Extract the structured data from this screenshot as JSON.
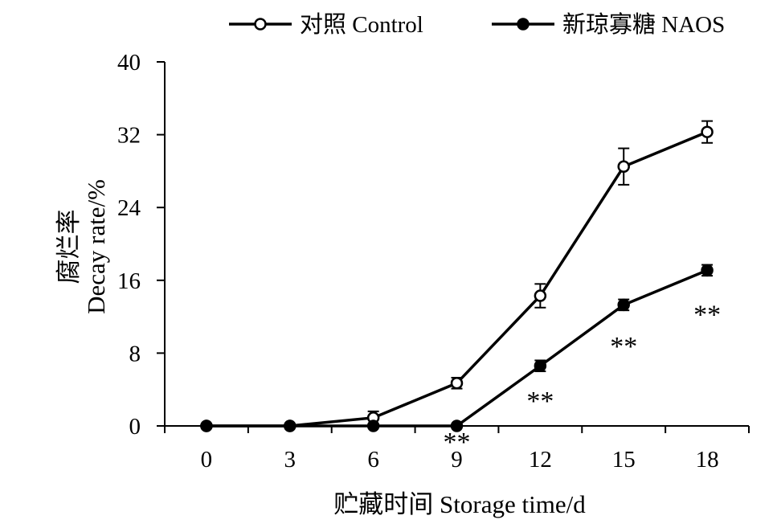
{
  "chart_data": {
    "type": "line",
    "xlabel": "贮藏时间 Storage time/d",
    "ylabel_cn": "腐烂率",
    "ylabel_en": "Decay rate/%",
    "x": [
      0,
      3,
      6,
      9,
      12,
      15,
      18
    ],
    "xticks": [
      "0",
      "3",
      "6",
      "9",
      "12",
      "15",
      "18"
    ],
    "xlim": [
      -1.5,
      19.5
    ],
    "ylim": [
      0,
      40
    ],
    "yticks": [
      "0",
      "8",
      "16",
      "24",
      "32",
      "40"
    ],
    "grid": false,
    "legend_position": "top",
    "series": [
      {
        "name": "对照 Control",
        "marker": "open-circle",
        "color": "#000000",
        "values": [
          0,
          0,
          0.9,
          4.7,
          14.3,
          28.5,
          32.3
        ],
        "errors": [
          0,
          0,
          0.7,
          0.6,
          1.3,
          2.0,
          1.2
        ]
      },
      {
        "name": "新琼寡糖 NAOS",
        "marker": "filled-circle",
        "color": "#000000",
        "values": [
          0,
          0,
          0,
          0,
          6.6,
          13.3,
          17.1
        ],
        "errors": [
          0,
          0,
          0,
          0,
          0.6,
          0.6,
          0.6
        ]
      }
    ],
    "annotations": [
      {
        "text": "**",
        "x": 9,
        "y": -1.5
      },
      {
        "text": "**",
        "x": 12,
        "y": 3.0
      },
      {
        "text": "**",
        "x": 15,
        "y": 9.0
      },
      {
        "text": "**",
        "x": 18,
        "y": 12.5
      }
    ]
  }
}
